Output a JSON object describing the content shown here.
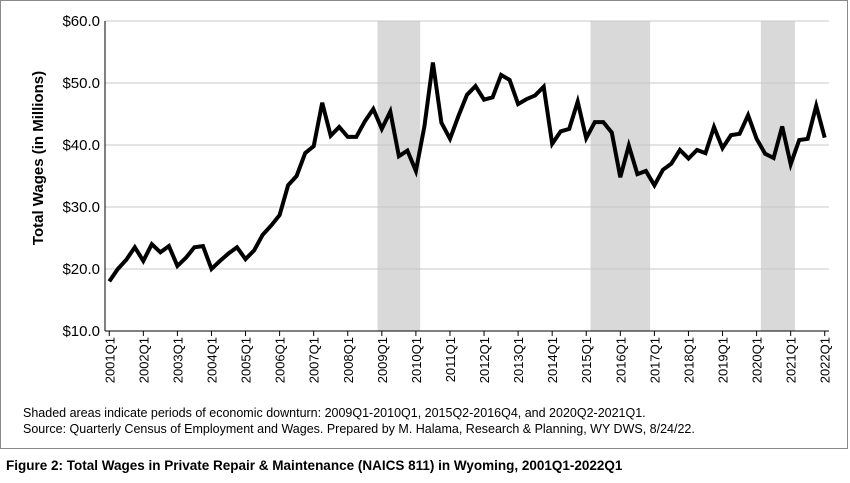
{
  "chart_data": {
    "type": "line",
    "ylabel": "Total Wages (in Millions)",
    "xlabel": "",
    "ylim": [
      10,
      60
    ],
    "y_ticks": [
      "$10.0",
      "$20.0",
      "$30.0",
      "$40.0",
      "$50.0",
      "$60.0"
    ],
    "x_tick_labels": [
      "2001Q1",
      "2002Q1",
      "2003Q1",
      "2004Q1",
      "2005Q1",
      "2006Q1",
      "2007Q1",
      "2008Q1",
      "2009Q1",
      "2010Q1",
      "2011Q1",
      "2012Q1",
      "2013Q1",
      "2014Q1",
      "2015Q1",
      "2016Q1",
      "2017Q1",
      "2018Q1",
      "2019Q1",
      "2020Q1",
      "2021Q1",
      "2022Q1"
    ],
    "grid": "horizontal",
    "line_color": "#000000",
    "shade_color": "#d9d9d9",
    "shaded_periods": [
      [
        "2009Q1",
        "2010Q1"
      ],
      [
        "2015Q2",
        "2016Q4"
      ],
      [
        "2020Q2",
        "2021Q1"
      ]
    ],
    "series": [
      {
        "x": [
          "2001Q1",
          "2001Q2",
          "2001Q3",
          "2001Q4",
          "2002Q1",
          "2002Q2",
          "2002Q3",
          "2002Q4",
          "2003Q1",
          "2003Q2",
          "2003Q3",
          "2003Q4",
          "2004Q1",
          "2004Q2",
          "2004Q3",
          "2004Q4",
          "2005Q1",
          "2005Q2",
          "2005Q3",
          "2005Q4",
          "2006Q1",
          "2006Q2",
          "2006Q3",
          "2006Q4",
          "2007Q1",
          "2007Q2",
          "2007Q3",
          "2007Q4",
          "2008Q1",
          "2008Q2",
          "2008Q3",
          "2008Q4",
          "2009Q1",
          "2009Q2",
          "2009Q3",
          "2009Q4",
          "2010Q1",
          "2010Q2",
          "2010Q3",
          "2010Q4",
          "2011Q1",
          "2011Q2",
          "2011Q3",
          "2011Q4",
          "2012Q1",
          "2012Q2",
          "2012Q3",
          "2012Q4",
          "2013Q1",
          "2013Q2",
          "2013Q3",
          "2013Q4",
          "2014Q1",
          "2014Q2",
          "2014Q3",
          "2014Q4",
          "2015Q1",
          "2015Q2",
          "2015Q3",
          "2015Q4",
          "2016Q1",
          "2016Q2",
          "2016Q3",
          "2016Q4",
          "2017Q1",
          "2017Q2",
          "2017Q3",
          "2017Q4",
          "2018Q1",
          "2018Q2",
          "2018Q3",
          "2018Q4",
          "2019Q1",
          "2019Q2",
          "2019Q3",
          "2019Q4",
          "2020Q1",
          "2020Q2",
          "2020Q3",
          "2020Q4",
          "2021Q1",
          "2021Q2",
          "2021Q3",
          "2021Q4",
          "2022Q1"
        ],
        "values": [
          18.0,
          20.0,
          21.5,
          23.5,
          21.3,
          24.0,
          22.7,
          23.7,
          20.5,
          21.8,
          23.5,
          23.7,
          20.0,
          21.3,
          22.5,
          23.5,
          21.6,
          23.0,
          25.5,
          27.0,
          28.7,
          33.5,
          35.0,
          38.7,
          39.8,
          46.8,
          41.5,
          42.9,
          41.3,
          41.3,
          43.8,
          45.8,
          42.6,
          45.4,
          38.2,
          39.1,
          35.8,
          43.0,
          53.3,
          43.6,
          41.0,
          44.7,
          48.1,
          49.5,
          47.3,
          47.7,
          51.3,
          50.5,
          46.6,
          47.4,
          48.0,
          49.4,
          40.2,
          42.2,
          42.6,
          47.0,
          41.1,
          43.7,
          43.7,
          42.0,
          34.8,
          39.9,
          35.3,
          35.8,
          33.5,
          36.0,
          37.0,
          39.2,
          37.8,
          39.2,
          38.7,
          42.9,
          39.5,
          41.6,
          41.8,
          44.8,
          41.0,
          38.6,
          37.9,
          43.0,
          36.9,
          40.8,
          41.0,
          46.3,
          41.2
        ]
      }
    ]
  },
  "notes": {
    "shading_note": "Shaded areas indicate periods of economic downturn: 2009Q1-2010Q1, 2015Q2-2016Q4, and 2020Q2-2021Q1.",
    "source_note": "Source: Quarterly Census of Employment and Wages. Prepared by M. Halama, Research & Planning, WY DWS, 8/24/22."
  },
  "caption": "Figure 2: Total Wages in Private Repair & Maintenance (NAICS 811) in Wyoming, 2001Q1-2022Q1"
}
